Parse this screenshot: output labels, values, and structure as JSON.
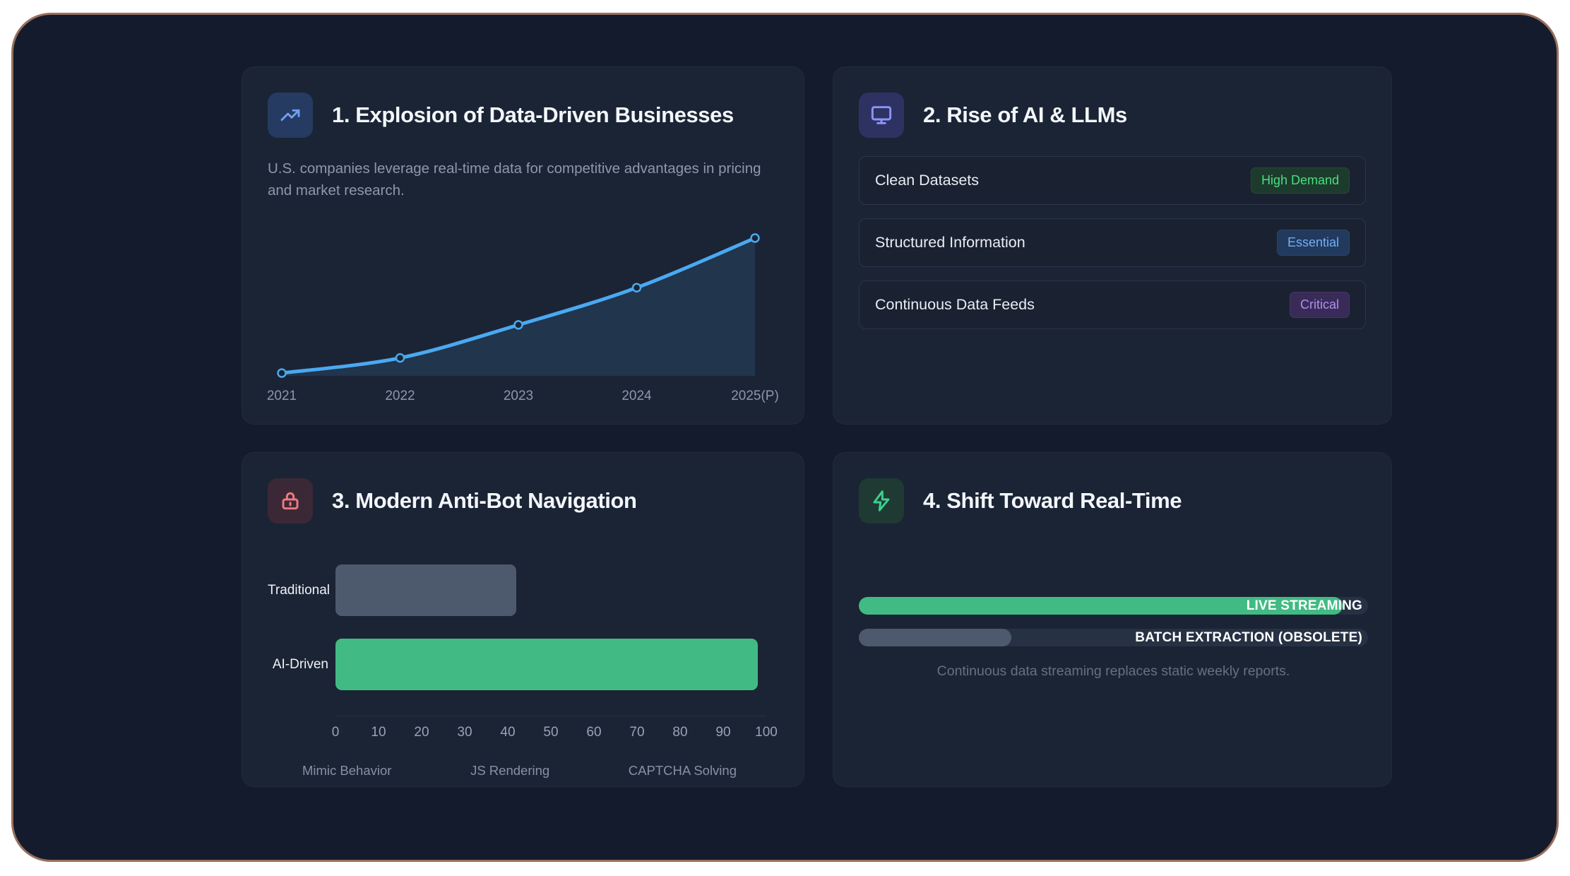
{
  "theme": {
    "page_bg": "#ffffff",
    "frame_border": "#97705d",
    "panel_bg": "#141b2c",
    "card_bg": "#1b2435",
    "title_color": "#f3f6fa",
    "muted_color": "#8d98ac"
  },
  "cards": {
    "data_driven": {
      "title": "1. Explosion of Data-Driven Businesses",
      "description": "U.S. companies leverage real-time data for competitive advantages in pricing and market research.",
      "icon": "trending-up-icon",
      "icon_bg": "#253b61",
      "icon_color": "#6f9ef2"
    },
    "ai_llms": {
      "title": "2. Rise of AI & LLMs",
      "icon": "monitor-icon",
      "icon_bg": "#2d3263",
      "icon_color": "#8d94f4",
      "items": [
        {
          "label": "Clean Datasets",
          "badge": "High Demand",
          "badge_bg": "#1d3b2d",
          "badge_color": "#4ade80"
        },
        {
          "label": "Structured Information",
          "badge": "Essential",
          "badge_bg": "#213a5e",
          "badge_color": "#74aef3"
        },
        {
          "label": "Continuous Data Feeds",
          "badge": "Critical",
          "badge_bg": "#392b57",
          "badge_color": "#b18df2"
        }
      ]
    },
    "anti_bot": {
      "title": "3. Modern Anti-Bot Navigation",
      "icon": "lock-icon",
      "icon_bg": "#3b2836",
      "icon_color": "#ee7b80"
    },
    "real_time": {
      "title": "4. Shift Toward Real-Time",
      "icon": "zap-icon",
      "icon_bg": "#1e3a33",
      "icon_color": "#3bd08d",
      "caption": "Continuous data streaming replaces static weekly reports."
    }
  },
  "chart_data": [
    {
      "type": "area",
      "card": "data_driven",
      "title": "Explosion of Data-Driven Businesses (growth curve)",
      "x": [
        "2021",
        "2022",
        "2023",
        "2024",
        "2025(P)"
      ],
      "values": [
        2,
        13,
        37,
        64,
        100
      ],
      "xlabel": "",
      "ylabel": "",
      "ylim": [
        0,
        100
      ],
      "grid": false,
      "legend": "none",
      "line_color": "#4aa9f1",
      "fill_color": "rgba(74,169,241,0.13)",
      "marker": "circle"
    },
    {
      "type": "bar",
      "card": "anti_bot",
      "orientation": "horizontal",
      "categories": [
        "Traditional",
        "AI-Driven"
      ],
      "values": [
        42,
        98
      ],
      "colors": [
        "#4d5a6e",
        "#41bb83"
      ],
      "xlim": [
        0,
        100
      ],
      "ticks": [
        "0",
        "10",
        "20",
        "30",
        "40",
        "50",
        "60",
        "70",
        "80",
        "90",
        "100"
      ],
      "grid": false,
      "legend": "none",
      "footnotes": [
        "Mimic Behavior",
        "JS Rendering",
        "CAPTCHA Solving"
      ]
    },
    {
      "type": "bar",
      "card": "real_time",
      "subtype": "progress",
      "xlim": [
        0,
        100
      ],
      "track_color": "#273144",
      "series": [
        {
          "name": "LIVE STREAMING",
          "value": 95,
          "color": "#41bb83"
        },
        {
          "name": "BATCH EXTRACTION (OBSOLETE)",
          "value": 30,
          "color": "#4d5a6e"
        }
      ]
    }
  ]
}
